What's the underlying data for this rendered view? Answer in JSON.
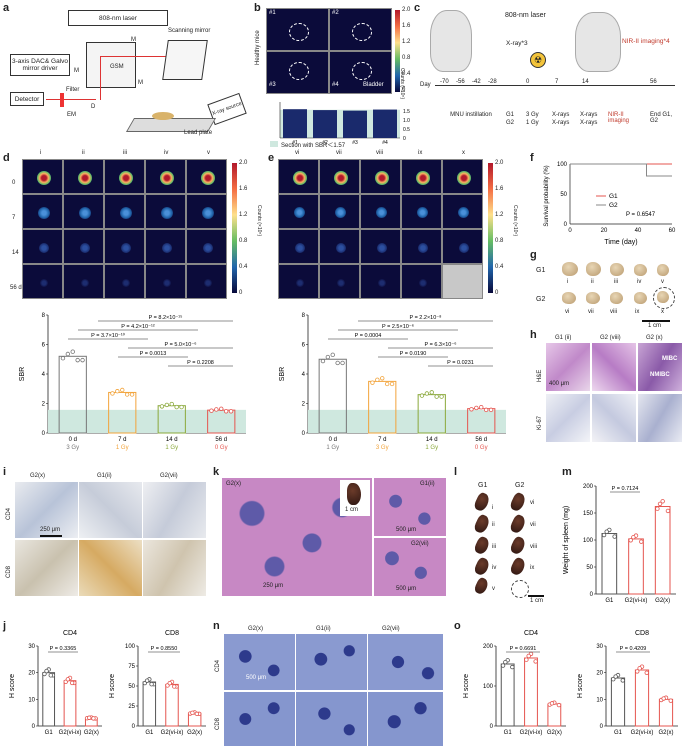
{
  "panels": {
    "a": "a",
    "b": "b",
    "c": "c",
    "d": "d",
    "e": "e",
    "f": "f",
    "g": "g",
    "h": "h",
    "i": "i",
    "j": "j",
    "k": "k",
    "l": "l",
    "m": "m",
    "n": "n",
    "o": "o"
  },
  "a": {
    "laser": "808-nm laser",
    "dac": "3-axis DAC& Galvo mirror driver",
    "detector": "Detector",
    "filter": "Filter",
    "em": "EM",
    "m1": "M",
    "m2": "M",
    "m3": "M",
    "gsm": "GSM",
    "d": "D",
    "scanning": "Scanning mirror",
    "xray": "X-ray source",
    "lead": "Lead plate"
  },
  "b": {
    "ylabel": "Healthy mice",
    "tiles": [
      "#1",
      "#2",
      "#3",
      "#4"
    ],
    "bladder": "Bladder",
    "cb_ticks": [
      "2.0",
      "1.6",
      "1.2",
      "0.8",
      "0.4",
      "0"
    ],
    "cb_label": "Counts (×10⁵)",
    "sbr_label": "SBR",
    "sbr_ticks": [
      "1.5",
      "1.0",
      "0.5",
      "0"
    ],
    "legend": "Section with SBR＜1.57"
  },
  "c": {
    "laser": "808-nm laser",
    "xray": "X-ray*3",
    "nir": "NIR-II imaging*4",
    "day": "Day",
    "days": [
      "-70",
      "-56",
      "-42",
      "-28",
      "0",
      "7",
      "14",
      "56"
    ],
    "mnu": "MNU instillation",
    "col0": [
      "G1",
      "G2"
    ],
    "col1": [
      "3 Gy",
      "1 Gy"
    ],
    "col2": [
      "X-rays",
      "X-rays"
    ],
    "col3": [
      "X-rays",
      "X-rays"
    ],
    "nir_img": "NIR-II imaging",
    "end": "End G1, G2"
  },
  "d": {
    "cols": [
      "i",
      "ii",
      "iii",
      "iv",
      "v"
    ],
    "rows": [
      "0",
      "7",
      "14",
      "56 d"
    ],
    "cb_ticks": [
      "2.0",
      "1.6",
      "1.2",
      "0.8",
      "0.4",
      "0"
    ],
    "cb_label": "Counts (×10⁵)",
    "ylabel": "SBR",
    "pvals": [
      "P = 8.2×10⁻¹⁵",
      "P = 4.2×10⁻¹²",
      "P = 3.7×10⁻¹⁰",
      "P = 5.0×10⁻⁶",
      "P = 0.0013",
      "P = 0.2208"
    ],
    "xcats": [
      "0 d",
      "7 d",
      "14 d",
      "56 d"
    ],
    "doses": [
      "3 Gy",
      "1 Gy",
      "1 Gy",
      "0 Gy"
    ]
  },
  "e": {
    "cols": [
      "vi",
      "vii",
      "viii",
      "ix",
      "x"
    ],
    "cb_ticks": [
      "2.0",
      "1.6",
      "1.2",
      "0.8",
      "0.4",
      "0"
    ],
    "cb_label": "Counts (×10⁵)",
    "ylabel": "SBR",
    "pvals": [
      "P = 2.2×10⁻⁸",
      "P = 2.5×10⁻⁶",
      "P = 0.0004",
      "P = 6.3×10⁻⁶",
      "P = 0.0190",
      "P = 0.0231"
    ],
    "xcats": [
      "0 d",
      "7 d",
      "14 d",
      "56 d"
    ],
    "doses": [
      "1 Gy",
      "3 Gy",
      "1 Gy",
      "0 Gy"
    ]
  },
  "f": {
    "ylabel": "Survival probability (%)",
    "xlabel": "Time (day)",
    "legend": [
      "G1",
      "G2"
    ],
    "pval": "P = 0.6547",
    "colors": [
      "#e5554f",
      "#888888"
    ]
  },
  "g": {
    "g1": "G1",
    "g2": "G2",
    "labels1": [
      "i",
      "ii",
      "iii",
      "iv",
      "v"
    ],
    "labels2": [
      "vi",
      "vii",
      "viii",
      "ix",
      "x"
    ],
    "scale": "1 cm"
  },
  "h": {
    "heads": [
      "G1 (ii)",
      "G2 (viii)",
      "G2 (x)"
    ],
    "rows": [
      "H&E",
      "Ki-67"
    ],
    "scale": "400 μm",
    "mibc": "MIBC",
    "nmibc": "NMIBC"
  },
  "i": {
    "heads": [
      "G2(x)",
      "G1(ii)",
      "G2(vii)"
    ],
    "rows": [
      "CD4",
      "CD8"
    ],
    "scale": "250 μm"
  },
  "j": {
    "cd4": "CD4",
    "cd8": "CD8",
    "ylabel": "H score",
    "p4": "P = 0.3365",
    "p8": "P = 0.8550",
    "cats": [
      "G1",
      "G2(vi-ix)",
      "G2(x)"
    ]
  },
  "k": {
    "g2x": "G2(x)",
    "g1": "G1(ii)",
    "g2vii": "G2(vii)",
    "s1": "1 cm",
    "s2": "500 μm",
    "s3": "250 μm",
    "s4": "500 μm"
  },
  "l": {
    "g1": "G1",
    "g2": "G2",
    "labels1": [
      "i",
      "ii",
      "iii",
      "iv",
      "v"
    ],
    "labels2": [
      "vi",
      "vii",
      "viii",
      "ix"
    ],
    "scale": "1 cm"
  },
  "m": {
    "ylabel": "Weight of spleen (mg)",
    "pval": "P = 0.7124",
    "cats": [
      "G1",
      "G2(vi-ix)",
      "G2(x)"
    ]
  },
  "n": {
    "heads": [
      "G2(x)",
      "G1(ii)",
      "G2(vii)"
    ],
    "rows": [
      "CD4",
      "CD8"
    ],
    "scale": "500 μm"
  },
  "o": {
    "cd4": "CD4",
    "cd8": "CD8",
    "ylabel": "H score",
    "p4": "P = 0.6691",
    "p8": "P = 0.4209",
    "cats": [
      "G1",
      "G2(vi-ix)",
      "G2(x)"
    ]
  },
  "chart_data": [
    {
      "type": "bar",
      "title": "b",
      "categories": [
        "#1",
        "#2",
        "#3",
        "#4"
      ],
      "values": [
        1.6,
        1.55,
        1.52,
        1.58
      ],
      "ylabel": "SBR",
      "ylim": [
        0,
        2
      ],
      "threshold": 1.57
    },
    {
      "type": "bar",
      "title": "d",
      "categories": [
        "0 d",
        "7 d",
        "14 d",
        "56 d"
      ],
      "values": [
        5.2,
        2.75,
        1.85,
        1.55
      ],
      "ylabel": "SBR",
      "ylim": [
        0,
        8
      ],
      "colors": [
        "#777777",
        "#f2a33a",
        "#8aa83a",
        "#e5554f"
      ]
    },
    {
      "type": "bar",
      "title": "e",
      "categories": [
        "0 d",
        "7 d",
        "14 d",
        "56 d"
      ],
      "values": [
        5.0,
        3.5,
        2.6,
        1.65
      ],
      "ylabel": "SBR",
      "ylim": [
        0,
        8
      ],
      "colors": [
        "#777777",
        "#f2a33a",
        "#8aa83a",
        "#e5554f"
      ]
    },
    {
      "type": "line",
      "title": "f",
      "x": [
        0,
        20,
        40,
        45,
        60
      ],
      "series": [
        {
          "name": "G1",
          "values": [
            100,
            100,
            100,
            100,
            100
          ]
        },
        {
          "name": "G2",
          "values": [
            100,
            100,
            100,
            80,
            80
          ]
        }
      ],
      "ylim": [
        0,
        100
      ],
      "xlim": [
        0,
        60
      ]
    },
    {
      "type": "bar",
      "title": "j-CD4",
      "categories": [
        "G1",
        "G2(vi-ix)",
        "G2(x)"
      ],
      "values": [
        20,
        17,
        3
      ],
      "ylim": [
        0,
        30
      ]
    },
    {
      "type": "bar",
      "title": "j-CD8",
      "categories": [
        "G1",
        "G2(vi-ix)",
        "G2(x)"
      ],
      "values": [
        55,
        52,
        16
      ],
      "ylim": [
        0,
        100
      ]
    },
    {
      "type": "bar",
      "title": "m",
      "categories": [
        "G1",
        "G2(vi-ix)",
        "G2(x)"
      ],
      "values": [
        112,
        102,
        162
      ],
      "ylim": [
        0,
        200
      ]
    },
    {
      "type": "bar",
      "title": "o-CD4",
      "categories": [
        "G1",
        "G2(vi-ix)",
        "G2(x)"
      ],
      "values": [
        155,
        170,
        55
      ],
      "ylim": [
        0,
        200
      ]
    },
    {
      "type": "bar",
      "title": "o-CD8",
      "categories": [
        "G1",
        "G2(vi-ix)",
        "G2(x)"
      ],
      "values": [
        18,
        21,
        10
      ],
      "ylim": [
        0,
        30
      ]
    }
  ]
}
